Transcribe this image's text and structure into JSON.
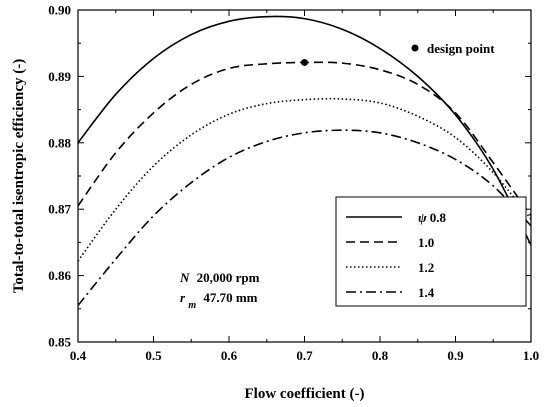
{
  "chart_data": {
    "type": "line",
    "title": "",
    "xlabel": "Flow coefficient (-)",
    "ylabel": "Total-to-total isentropic efficiency (-)",
    "xlim": [
      0.4,
      1.0
    ],
    "ylim": [
      0.85,
      0.9
    ],
    "x_ticks": [
      0.4,
      0.5,
      0.6,
      0.7,
      0.8,
      0.9,
      1.0
    ],
    "y_ticks": [
      0.85,
      0.86,
      0.87,
      0.88,
      0.89,
      0.9
    ],
    "x_tick_labels": [
      "0.4",
      "0.5",
      "0.6",
      "0.7",
      "0.8",
      "0.9",
      "1.0"
    ],
    "y_tick_labels": [
      "0.85",
      "0.86",
      "0.87",
      "0.88",
      "0.89",
      "0.90"
    ],
    "grid": false,
    "legend_position": "lower-right",
    "legend_symbol": "ψ",
    "series": [
      {
        "name": "0.8",
        "dash": "solid",
        "x": [
          0.4,
          0.45,
          0.5,
          0.55,
          0.6,
          0.65,
          0.7,
          0.75,
          0.8,
          0.85,
          0.9,
          0.95,
          1.0
        ],
        "y": [
          0.88,
          0.8873,
          0.8927,
          0.8963,
          0.8983,
          0.899,
          0.8987,
          0.8971,
          0.8942,
          0.89,
          0.8842,
          0.876,
          0.8646
        ]
      },
      {
        "name": "1.0",
        "dash": "long-dash",
        "x": [
          0.4,
          0.45,
          0.5,
          0.55,
          0.6,
          0.65,
          0.7,
          0.75,
          0.8,
          0.85,
          0.9,
          0.95,
          1.0
        ],
        "y": [
          0.8705,
          0.8785,
          0.8845,
          0.8888,
          0.8912,
          0.8919,
          0.8921,
          0.892,
          0.891,
          0.8888,
          0.8845,
          0.877,
          0.869
        ]
      },
      {
        "name": "1.2",
        "dash": "dotted",
        "x": [
          0.4,
          0.45,
          0.5,
          0.55,
          0.6,
          0.65,
          0.7,
          0.75,
          0.8,
          0.85,
          0.9,
          0.95,
          1.0
        ],
        "y": [
          0.8622,
          0.87,
          0.8765,
          0.8812,
          0.8843,
          0.8859,
          0.8865,
          0.8866,
          0.886,
          0.884,
          0.8808,
          0.8755,
          0.8685
        ]
      },
      {
        "name": "1.4",
        "dash": "dash-dot",
        "x": [
          0.4,
          0.45,
          0.5,
          0.55,
          0.6,
          0.65,
          0.7,
          0.75,
          0.8,
          0.85,
          0.9,
          0.95,
          1.0
        ],
        "y": [
          0.8555,
          0.8625,
          0.869,
          0.874,
          0.8778,
          0.8802,
          0.8815,
          0.8819,
          0.8815,
          0.88,
          0.8775,
          0.8735,
          0.8675
        ]
      }
    ],
    "design_point": {
      "label": "design point",
      "x": 0.7,
      "y": 0.8921
    },
    "annotations": {
      "speed_symbol": "N",
      "speed_value": "20,000 rpm",
      "radius_symbol": "r",
      "radius_subscript": "m",
      "radius_value": "47.70 mm"
    }
  }
}
